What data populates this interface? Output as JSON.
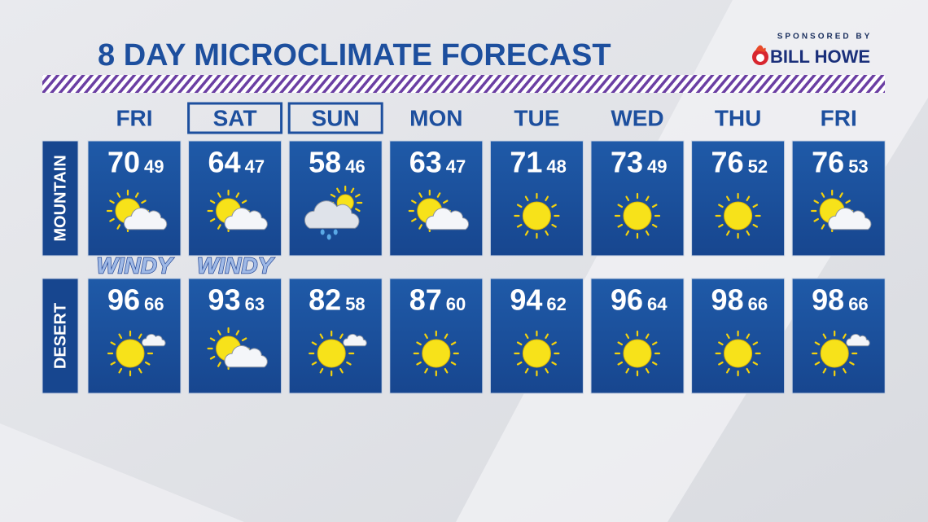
{
  "title": "8 DAY MICROCLIMATE FORECAST",
  "sponsor": {
    "caption": "SPONSORED BY",
    "name": "BILL HOWE"
  },
  "days": [
    {
      "label": "FRI",
      "boxed": false
    },
    {
      "label": "SAT",
      "boxed": true
    },
    {
      "label": "SUN",
      "boxed": true
    },
    {
      "label": "MON",
      "boxed": false
    },
    {
      "label": "TUE",
      "boxed": false
    },
    {
      "label": "WED",
      "boxed": false
    },
    {
      "label": "THU",
      "boxed": false
    },
    {
      "label": "FRI",
      "boxed": false
    }
  ],
  "rows": [
    {
      "label": "MOUNTAIN",
      "cells": [
        {
          "high": 70,
          "low": 49,
          "sky": "partly-cloudy",
          "note": "WINDY"
        },
        {
          "high": 64,
          "low": 47,
          "sky": "partly-cloudy",
          "note": "WINDY"
        },
        {
          "high": 58,
          "low": 46,
          "sky": "showers"
        },
        {
          "high": 63,
          "low": 47,
          "sky": "partly-cloudy"
        },
        {
          "high": 71,
          "low": 48,
          "sky": "sunny"
        },
        {
          "high": 73,
          "low": 49,
          "sky": "sunny"
        },
        {
          "high": 76,
          "low": 52,
          "sky": "sunny"
        },
        {
          "high": 76,
          "low": 53,
          "sky": "partly-cloudy"
        }
      ]
    },
    {
      "label": "DESERT",
      "cells": [
        {
          "high": 96,
          "low": 66,
          "sky": "mostly-sunny"
        },
        {
          "high": 93,
          "low": 63,
          "sky": "partly-cloudy"
        },
        {
          "high": 82,
          "low": 58,
          "sky": "mostly-sunny"
        },
        {
          "high": 87,
          "low": 60,
          "sky": "sunny"
        },
        {
          "high": 94,
          "low": 62,
          "sky": "sunny"
        },
        {
          "high": 96,
          "low": 64,
          "sky": "sunny"
        },
        {
          "high": 98,
          "low": 66,
          "sky": "sunny"
        },
        {
          "high": 98,
          "low": 66,
          "sky": "mostly-sunny"
        }
      ]
    }
  ]
}
